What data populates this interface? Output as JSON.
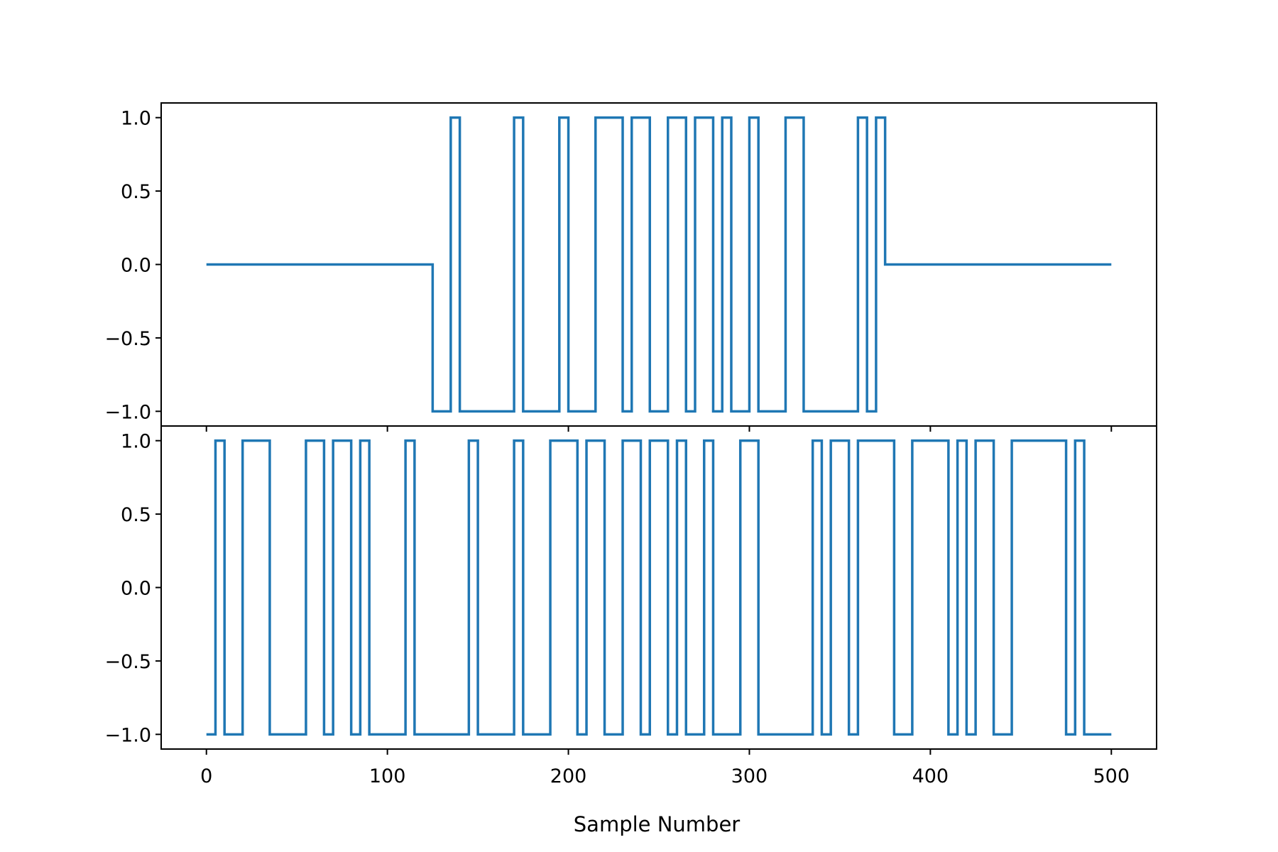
{
  "chart_data": [
    {
      "type": "line",
      "panel": "top",
      "xlabel": "",
      "ylabel": "",
      "xlim": [
        -25,
        525
      ],
      "ylim": [
        -1.1,
        1.1
      ],
      "x_ticks": [
        0,
        100,
        200,
        300,
        400,
        500
      ],
      "y_ticks": [
        1.0,
        0.5,
        0.0,
        -0.5,
        -1.0
      ],
      "y_tick_labels": [
        "1.0",
        "0.5",
        "0.0",
        "−0.5",
        "−1.0"
      ],
      "grid": false,
      "line_style": "steps-post",
      "series": [
        {
          "color": "#1f77b4",
          "x": [
            0,
            125,
            135,
            140,
            170,
            175,
            195,
            200,
            215,
            230,
            235,
            245,
            255,
            265,
            270,
            280,
            285,
            290,
            300,
            305,
            320,
            330,
            360,
            365,
            370,
            375,
            500
          ],
          "values": [
            0,
            -1,
            1,
            -1,
            1,
            -1,
            1,
            -1,
            1,
            -1,
            1,
            -1,
            1,
            -1,
            1,
            -1,
            1,
            -1,
            1,
            -1,
            1,
            -1,
            1,
            -1,
            1,
            0,
            0
          ]
        }
      ]
    },
    {
      "type": "line",
      "panel": "bottom",
      "xlabel": "Sample Number",
      "ylabel": "",
      "xlim": [
        -25,
        525
      ],
      "ylim": [
        -1.1,
        1.1
      ],
      "x_ticks": [
        0,
        100,
        200,
        300,
        400,
        500
      ],
      "x_tick_labels": [
        "0",
        "100",
        "200",
        "300",
        "400",
        "500"
      ],
      "y_ticks": [
        1.0,
        0.5,
        0.0,
        -0.5,
        -1.0
      ],
      "y_tick_labels": [
        "1.0",
        "0.5",
        "0.0",
        "−0.5",
        "−1.0"
      ],
      "grid": false,
      "line_style": "steps-post",
      "series": [
        {
          "color": "#1f77b4",
          "x": [
            0,
            5,
            10,
            20,
            35,
            55,
            65,
            70,
            80,
            85,
            90,
            110,
            115,
            145,
            150,
            170,
            175,
            190,
            205,
            210,
            220,
            230,
            240,
            245,
            255,
            260,
            265,
            275,
            280,
            295,
            305,
            335,
            340,
            345,
            355,
            360,
            380,
            390,
            410,
            415,
            420,
            425,
            435,
            445,
            475,
            480,
            485,
            500
          ],
          "values": [
            -1,
            1,
            -1,
            1,
            -1,
            1,
            -1,
            1,
            -1,
            1,
            -1,
            1,
            -1,
            1,
            -1,
            1,
            -1,
            1,
            -1,
            1,
            -1,
            1,
            -1,
            1,
            -1,
            1,
            -1,
            1,
            -1,
            1,
            -1,
            1,
            -1,
            1,
            -1,
            1,
            -1,
            1,
            -1,
            1,
            -1,
            1,
            -1,
            1,
            -1,
            1,
            -1,
            -1
          ]
        }
      ]
    }
  ]
}
